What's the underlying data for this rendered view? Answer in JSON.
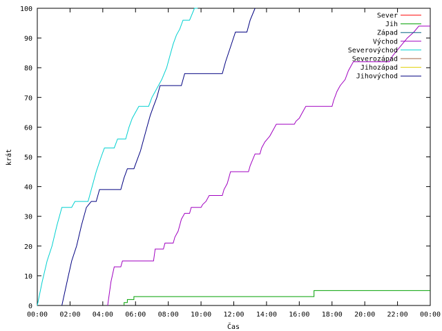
{
  "chart_data": {
    "type": "line",
    "title": "",
    "xlabel": "Čas",
    "ylabel": "krát",
    "xlim": [
      0,
      24
    ],
    "ylim": [
      0,
      100
    ],
    "x_ticks": [
      {
        "value": 0,
        "label": "00:00"
      },
      {
        "value": 2,
        "label": "02:00"
      },
      {
        "value": 4,
        "label": "04:00"
      },
      {
        "value": 6,
        "label": "06:00"
      },
      {
        "value": 8,
        "label": "08:00"
      },
      {
        "value": 10,
        "label": "10:00"
      },
      {
        "value": 12,
        "label": "12:00"
      },
      {
        "value": 14,
        "label": "14:00"
      },
      {
        "value": 16,
        "label": "16:00"
      },
      {
        "value": 18,
        "label": "18:00"
      },
      {
        "value": 20,
        "label": "20:00"
      },
      {
        "value": 22,
        "label": "22:00"
      },
      {
        "value": 24,
        "label": "00:00"
      }
    ],
    "y_ticks": [
      0,
      10,
      20,
      30,
      40,
      50,
      60,
      70,
      80,
      90,
      100
    ],
    "grid": false,
    "legend_position": "top-right",
    "series": [
      {
        "name": "Sever",
        "color": "#ff0000",
        "points": []
      },
      {
        "name": "Jih",
        "color": "#00a000",
        "points": [
          [
            5.3,
            0
          ],
          [
            5.3,
            1
          ],
          [
            5.5,
            1
          ],
          [
            5.5,
            2
          ],
          [
            5.9,
            2
          ],
          [
            5.9,
            3
          ],
          [
            11.5,
            3
          ],
          [
            16.9,
            3
          ],
          [
            16.9,
            5
          ],
          [
            24,
            5
          ]
        ]
      },
      {
        "name": "Západ",
        "color": "#006080",
        "points": []
      },
      {
        "name": "Východ",
        "color": "#a000c0",
        "points": [
          [
            4.3,
            0
          ],
          [
            4.5,
            8
          ],
          [
            4.7,
            13
          ],
          [
            5.1,
            13
          ],
          [
            5.2,
            15
          ],
          [
            7.1,
            15
          ],
          [
            7.2,
            19
          ],
          [
            7.7,
            19
          ],
          [
            7.8,
            21
          ],
          [
            8.3,
            21
          ],
          [
            8.4,
            23
          ],
          [
            8.6,
            25
          ],
          [
            8.7,
            27
          ],
          [
            8.8,
            29
          ],
          [
            9.0,
            31
          ],
          [
            9.3,
            31
          ],
          [
            9.4,
            33
          ],
          [
            10.0,
            33
          ],
          [
            10.1,
            34
          ],
          [
            10.3,
            35
          ],
          [
            10.5,
            37
          ],
          [
            11.3,
            37
          ],
          [
            11.4,
            39
          ],
          [
            11.6,
            41
          ],
          [
            11.7,
            43
          ],
          [
            11.8,
            45
          ],
          [
            12.9,
            45
          ],
          [
            13.0,
            47
          ],
          [
            13.3,
            51
          ],
          [
            13.6,
            51
          ],
          [
            13.7,
            53
          ],
          [
            13.9,
            55
          ],
          [
            14.2,
            57
          ],
          [
            14.4,
            59
          ],
          [
            14.6,
            61
          ],
          [
            15.7,
            61
          ],
          [
            15.8,
            62
          ],
          [
            16.0,
            63
          ],
          [
            16.2,
            65
          ],
          [
            16.4,
            67
          ],
          [
            18.0,
            67
          ],
          [
            18.1,
            69
          ],
          [
            18.3,
            72
          ],
          [
            18.5,
            74
          ],
          [
            18.8,
            76
          ],
          [
            19.0,
            79
          ],
          [
            19.3,
            82
          ],
          [
            21.5,
            82
          ],
          [
            21.7,
            84
          ],
          [
            22.0,
            86
          ],
          [
            22.3,
            88
          ],
          [
            22.6,
            90
          ],
          [
            23.0,
            92
          ],
          [
            23.3,
            94
          ],
          [
            24,
            94
          ]
        ]
      },
      {
        "name": "Severovýchod",
        "color": "#00d0d0",
        "points": [
          [
            0.0,
            0
          ],
          [
            0.3,
            8
          ],
          [
            0.6,
            15
          ],
          [
            0.9,
            20
          ],
          [
            1.2,
            27
          ],
          [
            1.5,
            33
          ],
          [
            2.1,
            33
          ],
          [
            2.3,
            35
          ],
          [
            3.1,
            35
          ],
          [
            3.3,
            39
          ],
          [
            3.6,
            45
          ],
          [
            3.9,
            50
          ],
          [
            4.1,
            53
          ],
          [
            4.7,
            53
          ],
          [
            4.9,
            56
          ],
          [
            5.4,
            56
          ],
          [
            5.6,
            60
          ],
          [
            5.8,
            63
          ],
          [
            6.0,
            65
          ],
          [
            6.2,
            67
          ],
          [
            6.8,
            67
          ],
          [
            7.0,
            70
          ],
          [
            7.2,
            72
          ],
          [
            7.4,
            74
          ],
          [
            7.6,
            76
          ],
          [
            7.9,
            80
          ],
          [
            8.1,
            84
          ],
          [
            8.3,
            88
          ],
          [
            8.5,
            91
          ],
          [
            8.7,
            93
          ],
          [
            8.9,
            96
          ],
          [
            9.3,
            96
          ],
          [
            9.6,
            100
          ],
          [
            9.8,
            100
          ]
        ]
      },
      {
        "name": "Severozápad",
        "color": "#a06040",
        "points": []
      },
      {
        "name": "Jihozápad",
        "color": "#e0d000",
        "points": []
      },
      {
        "name": "Jihovýchod",
        "color": "#000080",
        "points": [
          [
            1.5,
            0
          ],
          [
            1.7,
            5
          ],
          [
            1.9,
            10
          ],
          [
            2.1,
            15
          ],
          [
            2.4,
            20
          ],
          [
            2.7,
            27
          ],
          [
            3.0,
            33
          ],
          [
            3.3,
            35
          ],
          [
            3.6,
            35
          ],
          [
            3.8,
            39
          ],
          [
            5.1,
            39
          ],
          [
            5.3,
            43
          ],
          [
            5.5,
            46
          ],
          [
            5.9,
            46
          ],
          [
            6.1,
            49
          ],
          [
            6.3,
            52
          ],
          [
            6.5,
            56
          ],
          [
            6.7,
            60
          ],
          [
            6.9,
            64
          ],
          [
            7.1,
            67
          ],
          [
            7.3,
            70
          ],
          [
            7.5,
            74
          ],
          [
            8.8,
            74
          ],
          [
            9.0,
            78
          ],
          [
            11.3,
            78
          ],
          [
            11.5,
            82
          ],
          [
            11.8,
            87
          ],
          [
            12.1,
            92
          ],
          [
            12.8,
            92
          ],
          [
            13.0,
            96
          ],
          [
            13.3,
            100
          ]
        ]
      }
    ]
  }
}
